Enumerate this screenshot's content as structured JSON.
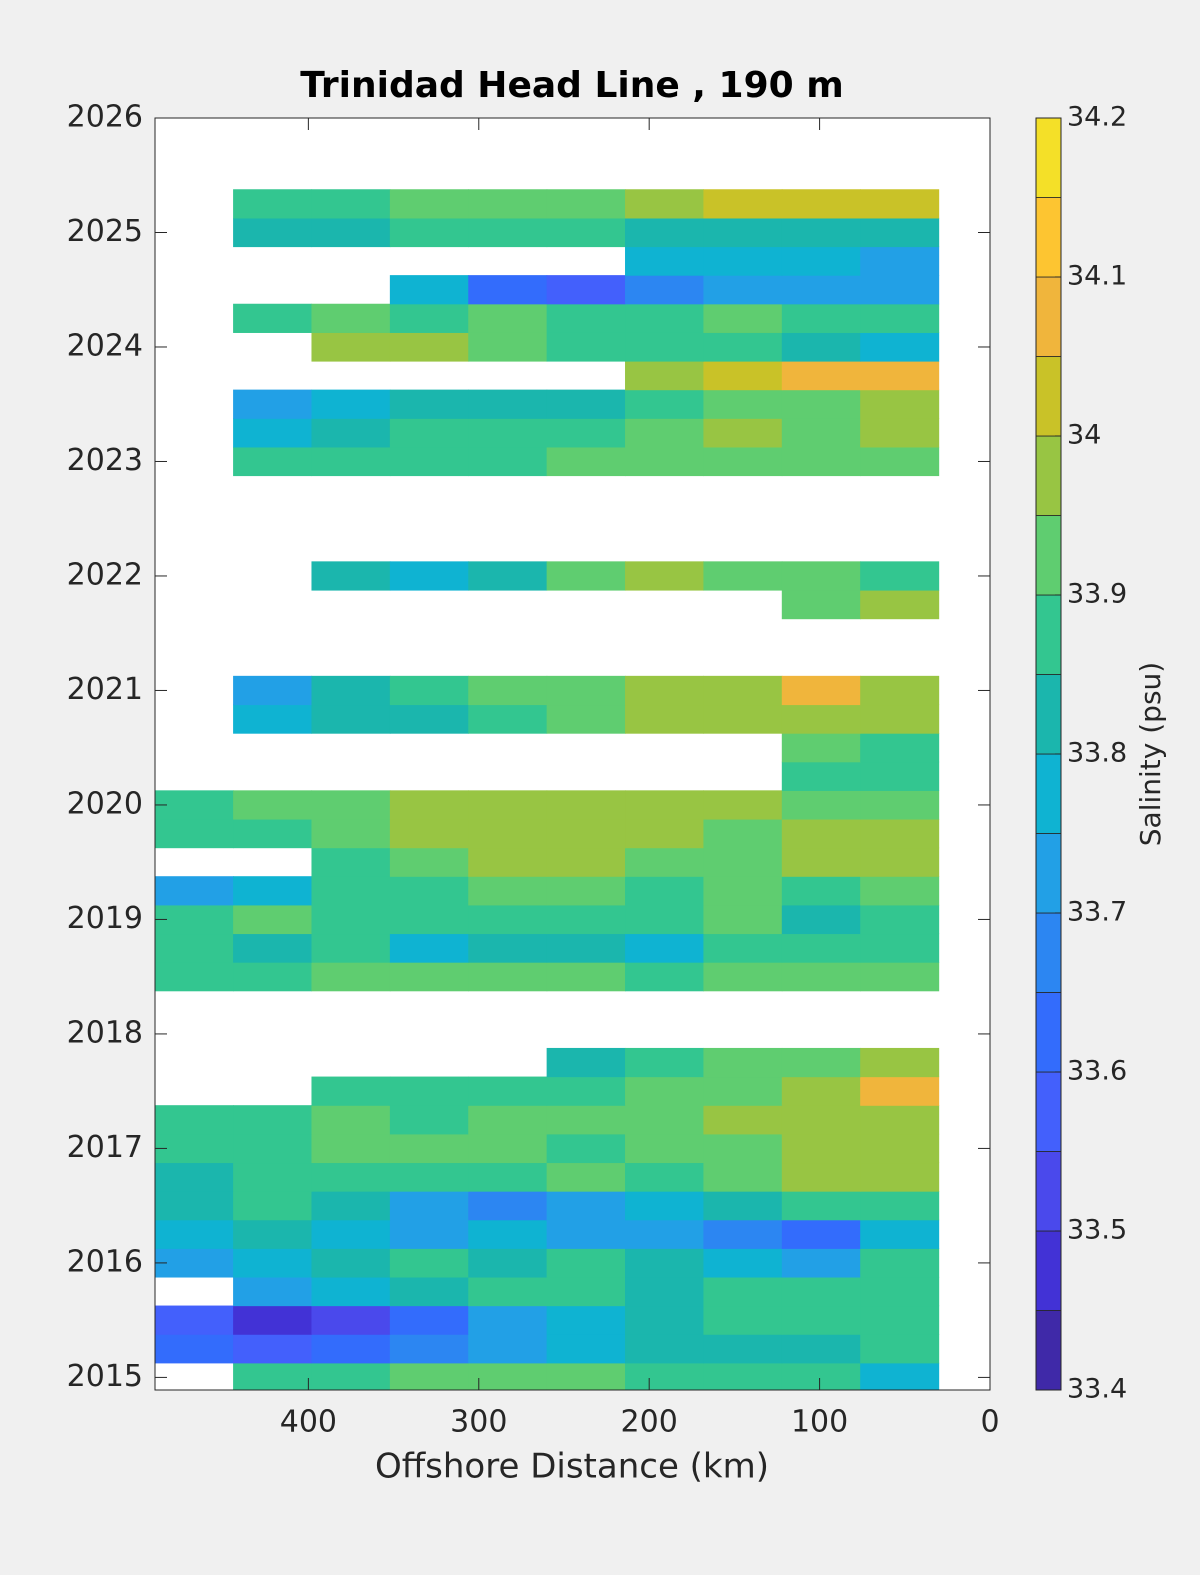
{
  "chart_data": {
    "type": "contourf",
    "title": "Trinidad Head Line , 190 m",
    "xlabel": "Offshore Distance (km)",
    "colorbar_label": "Salinity (psu)",
    "xlim": [
      490,
      0
    ],
    "xticks": [
      400,
      300,
      200,
      100,
      0
    ],
    "ylim": [
      2014.89,
      2026
    ],
    "yticks": [
      2015,
      2016,
      2017,
      2018,
      2019,
      2020,
      2021,
      2022,
      2023,
      2024,
      2025,
      2026
    ],
    "clim": [
      33.4,
      34.2
    ],
    "cticks": [
      33.4,
      33.5,
      33.6,
      33.7,
      33.8,
      33.9,
      34,
      34.1,
      34.2
    ],
    "colors": [
      "#3f29a8",
      "#4232d6",
      "#4a49ec",
      "#4360fc",
      "#336cfc",
      "#2c86f2",
      "#22a0e6",
      "#0fb3d2",
      "#1bb6ad",
      "#33c690",
      "#5fcd70",
      "#98c543",
      "#c9c228",
      "#f0b53c",
      "#fdc531",
      "#f4e028"
    ],
    "x": [
      467,
      421,
      375,
      329,
      283,
      237,
      191,
      145,
      99,
      53
    ],
    "y": [
      2015,
      2015.25,
      2015.5,
      2015.75,
      2016,
      2016.25,
      2016.5,
      2016.75,
      2017,
      2017.25,
      2017.5,
      2017.75,
      2018,
      2018.25,
      2018.5,
      2018.75,
      2019,
      2019.25,
      2019.5,
      2019.75,
      2020,
      2020.25,
      2020.5,
      2020.75,
      2021,
      2021.25,
      2021.5,
      2021.75,
      2022,
      2022.25,
      2022.5,
      2022.75,
      2023,
      2023.25,
      2023.5,
      2023.75,
      2024,
      2024.25,
      2024.5,
      2024.75,
      2025,
      2025.25
    ],
    "z": [
      [
        null,
        33.88,
        33.87,
        33.9,
        33.92,
        33.9,
        33.88,
        33.87,
        33.88,
        33.75
      ],
      [
        33.6,
        33.55,
        33.6,
        33.65,
        33.7,
        33.75,
        33.8,
        33.8,
        33.82,
        33.85
      ],
      [
        33.55,
        33.45,
        33.5,
        33.6,
        33.7,
        33.75,
        33.8,
        33.85,
        33.85,
        33.88
      ],
      [
        null,
        33.7,
        33.75,
        33.8,
        33.85,
        33.85,
        33.8,
        33.85,
        33.88,
        33.85
      ],
      [
        33.7,
        33.75,
        33.8,
        33.85,
        33.8,
        33.85,
        33.8,
        33.75,
        33.7,
        33.85
      ],
      [
        33.75,
        33.8,
        33.75,
        33.7,
        33.75,
        33.7,
        33.7,
        33.65,
        33.6,
        33.75
      ],
      [
        33.8,
        33.85,
        33.8,
        33.7,
        33.65,
        33.7,
        33.75,
        33.8,
        33.85,
        33.88
      ],
      [
        33.8,
        33.85,
        33.88,
        33.85,
        33.85,
        33.9,
        33.88,
        33.92,
        33.95,
        33.98
      ],
      [
        33.85,
        33.88,
        33.9,
        33.92,
        33.9,
        33.88,
        33.9,
        33.92,
        33.95,
        33.95
      ],
      [
        33.88,
        33.88,
        33.9,
        33.85,
        33.9,
        33.92,
        33.9,
        33.95,
        33.98,
        33.95
      ],
      [
        null,
        null,
        33.85,
        33.85,
        33.88,
        33.85,
        33.9,
        33.92,
        33.95,
        34.05
      ],
      [
        null,
        null,
        null,
        null,
        null,
        33.8,
        33.88,
        33.9,
        33.92,
        33.95
      ],
      [
        null,
        null,
        null,
        null,
        null,
        null,
        null,
        null,
        null,
        null
      ],
      [
        null,
        null,
        null,
        null,
        null,
        null,
        null,
        null,
        null,
        null
      ],
      [
        33.85,
        33.88,
        33.9,
        33.9,
        33.92,
        33.9,
        33.88,
        33.9,
        33.92,
        33.92
      ],
      [
        33.85,
        33.8,
        33.85,
        33.78,
        33.82,
        33.8,
        33.78,
        33.85,
        33.88,
        33.85
      ],
      [
        33.88,
        33.9,
        33.85,
        33.88,
        33.85,
        33.88,
        33.85,
        33.9,
        33.8,
        33.85
      ],
      [
        33.72,
        33.75,
        33.85,
        33.88,
        33.92,
        33.9,
        33.88,
        33.9,
        33.85,
        33.9
      ],
      [
        null,
        null,
        33.88,
        33.92,
        33.95,
        33.95,
        33.92,
        33.9,
        33.95,
        33.98
      ],
      [
        33.85,
        33.85,
        33.9,
        33.95,
        33.95,
        33.95,
        33.95,
        33.92,
        33.95,
        33.95
      ],
      [
        33.88,
        33.9,
        33.92,
        33.95,
        33.95,
        33.97,
        33.95,
        33.95,
        33.92,
        33.9
      ],
      [
        null,
        null,
        null,
        null,
        null,
        null,
        null,
        null,
        33.88,
        33.88
      ],
      [
        null,
        null,
        null,
        null,
        null,
        null,
        null,
        null,
        33.9,
        33.88
      ],
      [
        null,
        33.75,
        33.8,
        33.82,
        33.85,
        33.9,
        33.95,
        33.95,
        33.95,
        33.95
      ],
      [
        null,
        33.7,
        33.8,
        33.85,
        33.9,
        33.92,
        33.95,
        33.98,
        34.05,
        33.98
      ],
      [
        null,
        null,
        null,
        null,
        null,
        null,
        null,
        null,
        null,
        null
      ],
      [
        null,
        null,
        null,
        null,
        null,
        null,
        null,
        null,
        null,
        null
      ],
      [
        null,
        null,
        null,
        null,
        null,
        null,
        null,
        null,
        33.9,
        33.95
      ],
      [
        null,
        null,
        33.8,
        33.78,
        33.82,
        33.9,
        33.95,
        33.92,
        33.9,
        33.88
      ],
      [
        null,
        null,
        null,
        null,
        null,
        null,
        null,
        null,
        null,
        null
      ],
      [
        null,
        null,
        null,
        null,
        null,
        null,
        null,
        null,
        null,
        null
      ],
      [
        null,
        null,
        null,
        null,
        null,
        null,
        null,
        null,
        null,
        null
      ],
      [
        null,
        33.85,
        33.85,
        33.88,
        33.88,
        33.9,
        33.9,
        33.92,
        33.92,
        33.9
      ],
      [
        null,
        33.75,
        33.8,
        33.85,
        33.85,
        33.88,
        33.9,
        33.95,
        33.9,
        33.95
      ],
      [
        null,
        33.72,
        33.78,
        33.8,
        33.8,
        33.82,
        33.85,
        33.9,
        33.92,
        33.95
      ],
      [
        null,
        null,
        null,
        null,
        null,
        null,
        33.95,
        34.0,
        34.05,
        34.05
      ],
      [
        null,
        null,
        33.98,
        33.95,
        33.9,
        33.88,
        33.85,
        33.85,
        33.8,
        33.75
      ],
      [
        null,
        33.88,
        33.9,
        33.88,
        33.9,
        33.85,
        33.88,
        33.9,
        33.85,
        33.88
      ],
      [
        null,
        null,
        null,
        33.75,
        33.6,
        33.55,
        33.65,
        33.7,
        33.7,
        33.7
      ],
      [
        null,
        null,
        null,
        null,
        null,
        null,
        33.75,
        33.75,
        33.75,
        33.72
      ],
      [
        null,
        33.8,
        33.82,
        33.88,
        33.85,
        33.85,
        33.8,
        33.82,
        33.8,
        33.8
      ],
      [
        null,
        33.88,
        33.88,
        33.9,
        33.92,
        33.9,
        33.95,
        34.0,
        34.0,
        34.02
      ]
    ]
  }
}
